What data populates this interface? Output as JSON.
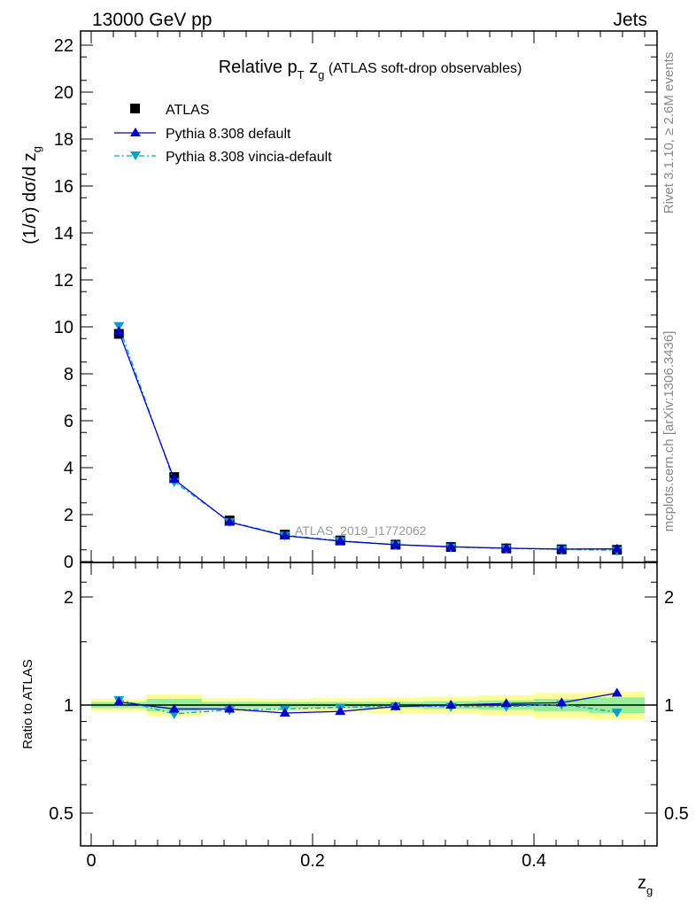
{
  "header": {
    "left": "13000 GeV pp",
    "right": "Jets"
  },
  "side_labels": {
    "rivet": "Rivet 3.1.10, ≥ 2.6M events",
    "mcplots": "mcplots.cern.ch [arXiv:1306.3436]"
  },
  "colors": {
    "atlas": "#000000",
    "pythia_default": "#0000cc",
    "pythia_vincia": "#00a0c8",
    "band_outer": "#ffff99",
    "band_inner": "#99ee99"
  },
  "chart_data": [
    {
      "type": "scatter",
      "panel": "main",
      "title": {
        "pre": "Relative p",
        "sub_t": "T",
        "mid": " z",
        "sub_g": "g",
        "post": " (ATLAS soft-drop observables)"
      },
      "ylabel": {
        "main": "(1/σ) dσ/d z",
        "sub": "g"
      },
      "watermark": "ATLAS_2019_I1772062",
      "xlim": [
        0,
        0.5
      ],
      "ylim": [
        0,
        22.5
      ],
      "y_ticks": [
        0,
        2,
        4,
        6,
        8,
        10,
        12,
        14,
        16,
        18,
        20,
        22
      ],
      "legend_position": "top-left",
      "x": [
        0.025,
        0.075,
        0.125,
        0.175,
        0.225,
        0.275,
        0.325,
        0.375,
        0.425,
        0.475
      ],
      "series": [
        {
          "name": "ATLAS",
          "style": "square-marker",
          "values": [
            9.7,
            3.6,
            1.75,
            1.15,
            0.9,
            0.72,
            0.62,
            0.56,
            0.52,
            0.5
          ]
        },
        {
          "name": "Pythia 8.308 default",
          "style": "solid-triangle-up",
          "values": [
            9.8,
            3.5,
            1.68,
            1.1,
            0.87,
            0.72,
            0.63,
            0.57,
            0.53,
            0.54
          ]
        },
        {
          "name": "Pythia 8.308 vincia-default",
          "style": "dashdot-triangle-down",
          "values": [
            10.05,
            3.4,
            1.7,
            1.12,
            0.89,
            0.72,
            0.62,
            0.56,
            0.52,
            0.48
          ]
        }
      ]
    },
    {
      "type": "scatter",
      "panel": "ratio",
      "ylabel": "Ratio to ATLAS",
      "xlabel": {
        "main": "z",
        "sub": "g"
      },
      "xlim": [
        0,
        0.5
      ],
      "x_ticks": [
        0,
        0.2,
        0.4
      ],
      "x_tick_labels": [
        "0",
        "0.2",
        "0.4"
      ],
      "ylim": [
        0.35,
        2.3
      ],
      "y_ticks": [
        0.5,
        1,
        2
      ],
      "y_tick_labels": [
        "0.5",
        "1",
        "2"
      ],
      "log_scale_y": true,
      "x": [
        0.025,
        0.075,
        0.125,
        0.175,
        0.225,
        0.275,
        0.325,
        0.375,
        0.425,
        0.475
      ],
      "band_inner_halfwidth": [
        0.02,
        0.04,
        0.02,
        0.02,
        0.02,
        0.02,
        0.025,
        0.03,
        0.04,
        0.05
      ],
      "band_outer_halfwidth": [
        0.04,
        0.07,
        0.045,
        0.04,
        0.045,
        0.05,
        0.055,
        0.065,
        0.08,
        0.09
      ],
      "series": [
        {
          "name": "Pythia 8.308 default",
          "values": [
            1.02,
            0.975,
            0.975,
            0.95,
            0.96,
            0.99,
            1.0,
            1.01,
            1.015,
            1.08
          ]
        },
        {
          "name": "Pythia 8.308 vincia-default",
          "values": [
            1.035,
            0.945,
            0.97,
            0.975,
            0.985,
            0.995,
            0.99,
            0.99,
            1.005,
            0.955
          ]
        }
      ]
    }
  ]
}
